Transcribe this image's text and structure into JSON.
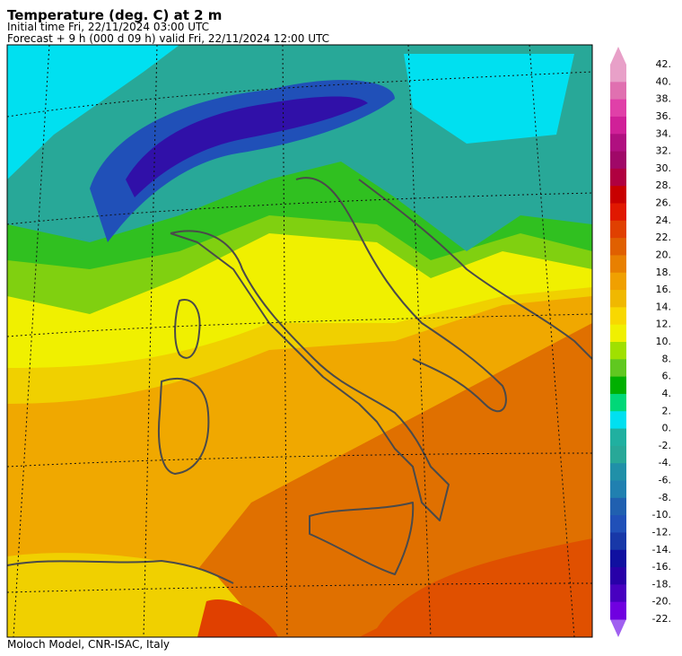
{
  "header": {
    "title": "Temperature (deg. C) at 2 m",
    "initial_time": "Initial time  Fri, 22/11/2024  03:00 UTC",
    "forecast": "Forecast  +   9 h  (000 d 09 h)  valid Fri, 22/11/2024 12:00 UTC"
  },
  "colorbar": {
    "levels": [
      {
        "label": "42.",
        "color": "#e8a0c8"
      },
      {
        "label": "40.",
        "color": "#e070b0"
      },
      {
        "label": "38.",
        "color": "#e040a8"
      },
      {
        "label": "36.",
        "color": "#d02098"
      },
      {
        "label": "34.",
        "color": "#b01080"
      },
      {
        "label": "32.",
        "color": "#a00868"
      },
      {
        "label": "30.",
        "color": "#b00040"
      },
      {
        "label": "28.",
        "color": "#c80000"
      },
      {
        "label": "26.",
        "color": "#e01800"
      },
      {
        "label": "24.",
        "color": "#e04000"
      },
      {
        "label": "22.",
        "color": "#e06000"
      },
      {
        "label": "20.",
        "color": "#e88000"
      },
      {
        "label": "18.",
        "color": "#f0a000"
      },
      {
        "label": "16.",
        "color": "#f0b800"
      },
      {
        "label": "14.",
        "color": "#f8d800"
      },
      {
        "label": "12.",
        "color": "#f0f000"
      },
      {
        "label": "10.",
        "color": "#a0e000"
      },
      {
        "label": "8.",
        "color": "#60c820"
      },
      {
        "label": "6.",
        "color": "#00b000"
      },
      {
        "label": "4.",
        "color": "#00d878"
      },
      {
        "label": "2.",
        "color": "#00e0f0"
      },
      {
        "label": "0.",
        "color": "#20b0a0"
      },
      {
        "label": "-2.",
        "color": "#28a898"
      },
      {
        "label": "-4.",
        "color": "#2090a8"
      },
      {
        "label": "-6.",
        "color": "#2080b0"
      },
      {
        "label": "-8.",
        "color": "#2060b0"
      },
      {
        "label": "-10.",
        "color": "#2050b8"
      },
      {
        "label": "-12.",
        "color": "#1838a8"
      },
      {
        "label": "-14.",
        "color": "#1010a0"
      },
      {
        "label": "-16.",
        "color": "#2800a8"
      },
      {
        "label": "-18.",
        "color": "#4800c0"
      },
      {
        "label": "-20.",
        "color": "#7000e0"
      },
      {
        "label": "-22.",
        "color": "#a060f0"
      }
    ]
  },
  "footer": "Moloch Model, CNR-ISAC, Italy"
}
